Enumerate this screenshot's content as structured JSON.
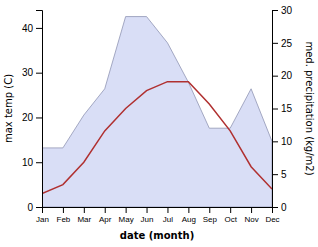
{
  "chart_data": {
    "type": "line",
    "categories": [
      "Jan",
      "Feb",
      "Mar",
      "Apr",
      "May",
      "Jun",
      "Jul",
      "Aug",
      "Sep",
      "Oct",
      "Nov",
      "Dec"
    ],
    "xlabel": "date (month)",
    "ylabel": "max temp (C)",
    "y2label": "med. precipitation (kg/m2)",
    "ylim": [
      0,
      44
    ],
    "yticks": [
      0,
      10,
      20,
      30,
      40
    ],
    "y2lim": [
      0,
      30
    ],
    "y2ticks": [
      0,
      5,
      10,
      15,
      20,
      25,
      30
    ],
    "series": [
      {
        "type": "area",
        "axis": "y2",
        "color": "#c0c8f0",
        "values": [
          9,
          9,
          14,
          18,
          29,
          29,
          25,
          19,
          12,
          12,
          18,
          10
        ]
      },
      {
        "type": "line",
        "color": "#b03030",
        "values": [
          3,
          5,
          10,
          17,
          22,
          26,
          28,
          28,
          23,
          17,
          9,
          4
        ]
      }
    ]
  }
}
